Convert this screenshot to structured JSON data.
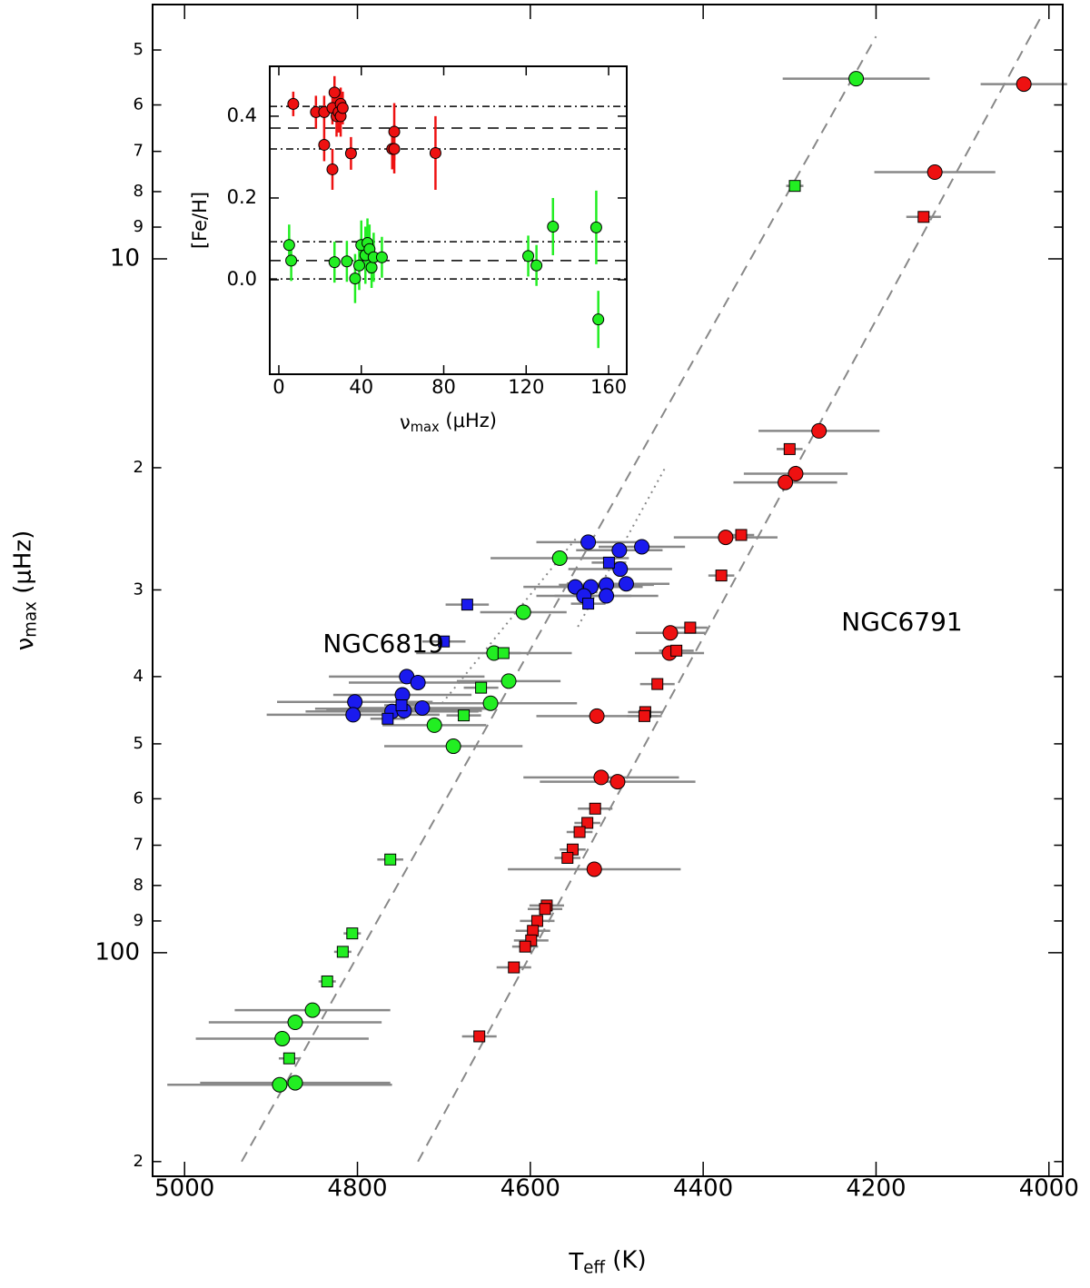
{
  "chart_data": [
    {
      "type": "scatter",
      "x_label": {
        "text": "T",
        "subscript": "eff",
        "suffix": " (K)"
      },
      "y_label": {
        "text": "ν",
        "subscript": "max",
        "suffix": " (μHz)"
      },
      "xlim": [
        5037,
        3984
      ],
      "ylim": [
        210,
        4.3
      ],
      "y_log": true,
      "xticks": [
        5000,
        4800,
        4600,
        4400,
        4200,
        4000
      ],
      "yticks": [
        {
          "value": 5,
          "label": "5"
        },
        {
          "value": 6,
          "label": "6"
        },
        {
          "value": 7,
          "label": "7"
        },
        {
          "value": 8,
          "label": "8"
        },
        {
          "value": 9,
          "label": "9"
        },
        10,
        {
          "value": 20,
          "label": "2"
        },
        {
          "value": 30,
          "label": "3"
        },
        {
          "value": 40,
          "label": "4"
        },
        {
          "value": 50,
          "label": "5"
        },
        {
          "value": 60,
          "label": "6"
        },
        {
          "value": 70,
          "label": "7"
        },
        {
          "value": 80,
          "label": "8"
        },
        {
          "value": 90,
          "label": "9"
        },
        100,
        {
          "value": 200,
          "label": "2"
        }
      ],
      "annotations": [
        {
          "text": "NGC6819",
          "x": 4770,
          "y": 36
        },
        {
          "text": "NGC6791",
          "x": 4170,
          "y": 33.5
        }
      ],
      "lines": [
        {
          "style": "dashed",
          "x": [
            4934,
            4200
          ],
          "values": [
            200,
            4.78
          ]
        },
        {
          "style": "dashed",
          "x": [
            4730,
            4007
          ],
          "values": [
            200,
            4.43
          ]
        },
        {
          "style": "dotted",
          "x": [
            4702,
            4545
          ],
          "values": [
            43.7,
            25.1
          ]
        },
        {
          "style": "dotted",
          "x": [
            4545,
            4443
          ],
          "values": [
            33.9,
            19.9
          ]
        }
      ],
      "series": [
        {
          "color": "#22ee22",
          "marker": "circle",
          "x": [
            4223,
            4566,
            4608,
            4642,
            4625,
            4646,
            4711,
            4689,
            4852,
            4872,
            4887,
            4890,
            4872
          ],
          "values": [
            5.5,
            27,
            32.3,
            37,
            40.6,
            43.7,
            47,
            50.4,
            121,
            126,
            133,
            155,
            154
          ],
          "xerr": [
            85,
            80,
            50,
            90,
            60,
            100,
            60,
            80,
            90,
            100,
            100,
            130,
            110
          ]
        },
        {
          "color": "#22ee22",
          "marker": "square",
          "x": [
            4294,
            4631,
            4657,
            4677,
            4762,
            4806,
            4817,
            4835,
            4879
          ],
          "values": [
            7.85,
            37,
            41.5,
            45.5,
            73.4,
            93.8,
            99.7,
            110,
            142
          ],
          "xerr": [
            10,
            20,
            20,
            20,
            15,
            10,
            10,
            10,
            12
          ]
        },
        {
          "color": "#1a1aee",
          "marker": "circle",
          "x": [
            4533,
            4497,
            4471,
            4496,
            4548,
            4512,
            4530,
            4489,
            4538,
            4512,
            4743,
            4730,
            4803,
            4748,
            4749,
            4725,
            4760,
            4746,
            4805
          ],
          "values": [
            25.6,
            26.3,
            26,
            28,
            29.7,
            29.5,
            29.7,
            29.4,
            30.6,
            30.6,
            40,
            40.8,
            43.5,
            42.5,
            44.5,
            44.4,
            44.9,
            44.8,
            45.4
          ],
          "xerr": [
            60,
            50,
            50,
            60,
            60,
            55,
            60,
            50,
            55,
            60,
            90,
            80,
            90,
            80,
            100,
            80,
            100,
            90,
            100
          ]
        },
        {
          "color": "#1a1aee",
          "marker": "square",
          "x": [
            4673,
            4700,
            4509,
            4533,
            4765,
            4749
          ],
          "values": [
            31.5,
            35.6,
            27.4,
            31.4,
            46,
            44
          ],
          "xerr": [
            25,
            25,
            20,
            20,
            20,
            20
          ]
        },
        {
          "color": "#ee1111",
          "marker": "circle",
          "x": [
            4029,
            4132,
            4266,
            4293,
            4305,
            4374,
            4438,
            4439,
            4523,
            4518,
            4499,
            4526
          ],
          "values": [
            5.6,
            7.5,
            17.7,
            20.4,
            21,
            25.2,
            34.6,
            37,
            45.6,
            55.9,
            56.7,
            75.8
          ],
          "xerr": [
            50,
            70,
            70,
            60,
            60,
            60,
            40,
            40,
            70,
            90,
            90,
            100
          ]
        },
        {
          "color": "#ee1111",
          "marker": "square",
          "x": [
            4145,
            4300,
            4356,
            4379,
            4415,
            4431,
            4453,
            4467,
            4468,
            4525,
            4534,
            4543,
            4551,
            4557,
            4581,
            4583,
            4592,
            4597,
            4599,
            4606,
            4619,
            4659
          ],
          "values": [
            8.7,
            18.8,
            25,
            28.6,
            34,
            36.7,
            41,
            45,
            45.6,
            62,
            65,
            67,
            71,
            73,
            85.5,
            86.5,
            90,
            93,
            96,
            98,
            105,
            132
          ],
          "xerr": [
            20,
            15,
            15,
            15,
            20,
            20,
            20,
            20,
            20,
            20,
            15,
            15,
            15,
            15,
            20,
            20,
            20,
            20,
            20,
            15,
            20,
            20
          ]
        }
      ]
    },
    {
      "type": "scatter",
      "x_label": {
        "text": "ν",
        "subscript": "max",
        "suffix": " (μHz)"
      },
      "y_label": "[Fe/H]",
      "xlim": [
        -4.4,
        168.8
      ],
      "ylim": [
        -0.231,
        0.522
      ],
      "xticks": [
        0,
        40,
        80,
        120,
        160
      ],
      "yticks": [
        {
          "value": 0,
          "label": "0.0"
        },
        {
          "value": 0.2,
          "label": "0.2"
        },
        {
          "value": 0.4,
          "label": "0.4"
        }
      ],
      "hlines": [
        {
          "style": "dashdot",
          "value": 0.424
        },
        {
          "style": "dashed",
          "value": 0.371
        },
        {
          "style": "dashdot",
          "value": 0.32
        },
        {
          "style": "dashdot",
          "value": 0.093
        },
        {
          "style": "dashed",
          "value": 0.047
        },
        {
          "style": "dashdot",
          "value": 0.002
        }
      ],
      "series": [
        {
          "color": "#ee1111",
          "marker": "circle",
          "x": [
            7,
            18,
            22,
            22,
            26,
            26,
            27,
            28,
            29,
            30,
            30,
            31,
            35,
            55,
            56,
            56,
            76
          ],
          "values": [
            0.43,
            0.41,
            0.41,
            0.33,
            0.27,
            0.42,
            0.458,
            0.4,
            0.41,
            0.43,
            0.4,
            0.42,
            0.309,
            0.32,
            0.362,
            0.32,
            0.31
          ],
          "yerr": [
            0.03,
            0.04,
            0.04,
            0.04,
            0.05,
            0.04,
            0.04,
            0.05,
            0.05,
            0.04,
            0.05,
            0.04,
            0.04,
            0.05,
            0.07,
            0.06,
            0.09
          ]
        },
        {
          "color": "#22ee22",
          "marker": "circle",
          "x": [
            5,
            6,
            27,
            33,
            37,
            39,
            40,
            42,
            43,
            44,
            45,
            46,
            50,
            121,
            125,
            133,
            154,
            155
          ],
          "values": [
            0.085,
            0.047,
            0.043,
            0.045,
            0.003,
            0.035,
            0.085,
            0.06,
            0.09,
            0.075,
            0.03,
            0.055,
            0.055,
            0.058,
            0.035,
            0.13,
            0.128,
            -0.097
          ],
          "yerr": [
            0.05,
            0.05,
            0.05,
            0.05,
            0.06,
            0.06,
            0.06,
            0.07,
            0.06,
            0.06,
            0.05,
            0.06,
            0.05,
            0.05,
            0.05,
            0.07,
            0.09,
            0.07
          ]
        }
      ]
    }
  ]
}
